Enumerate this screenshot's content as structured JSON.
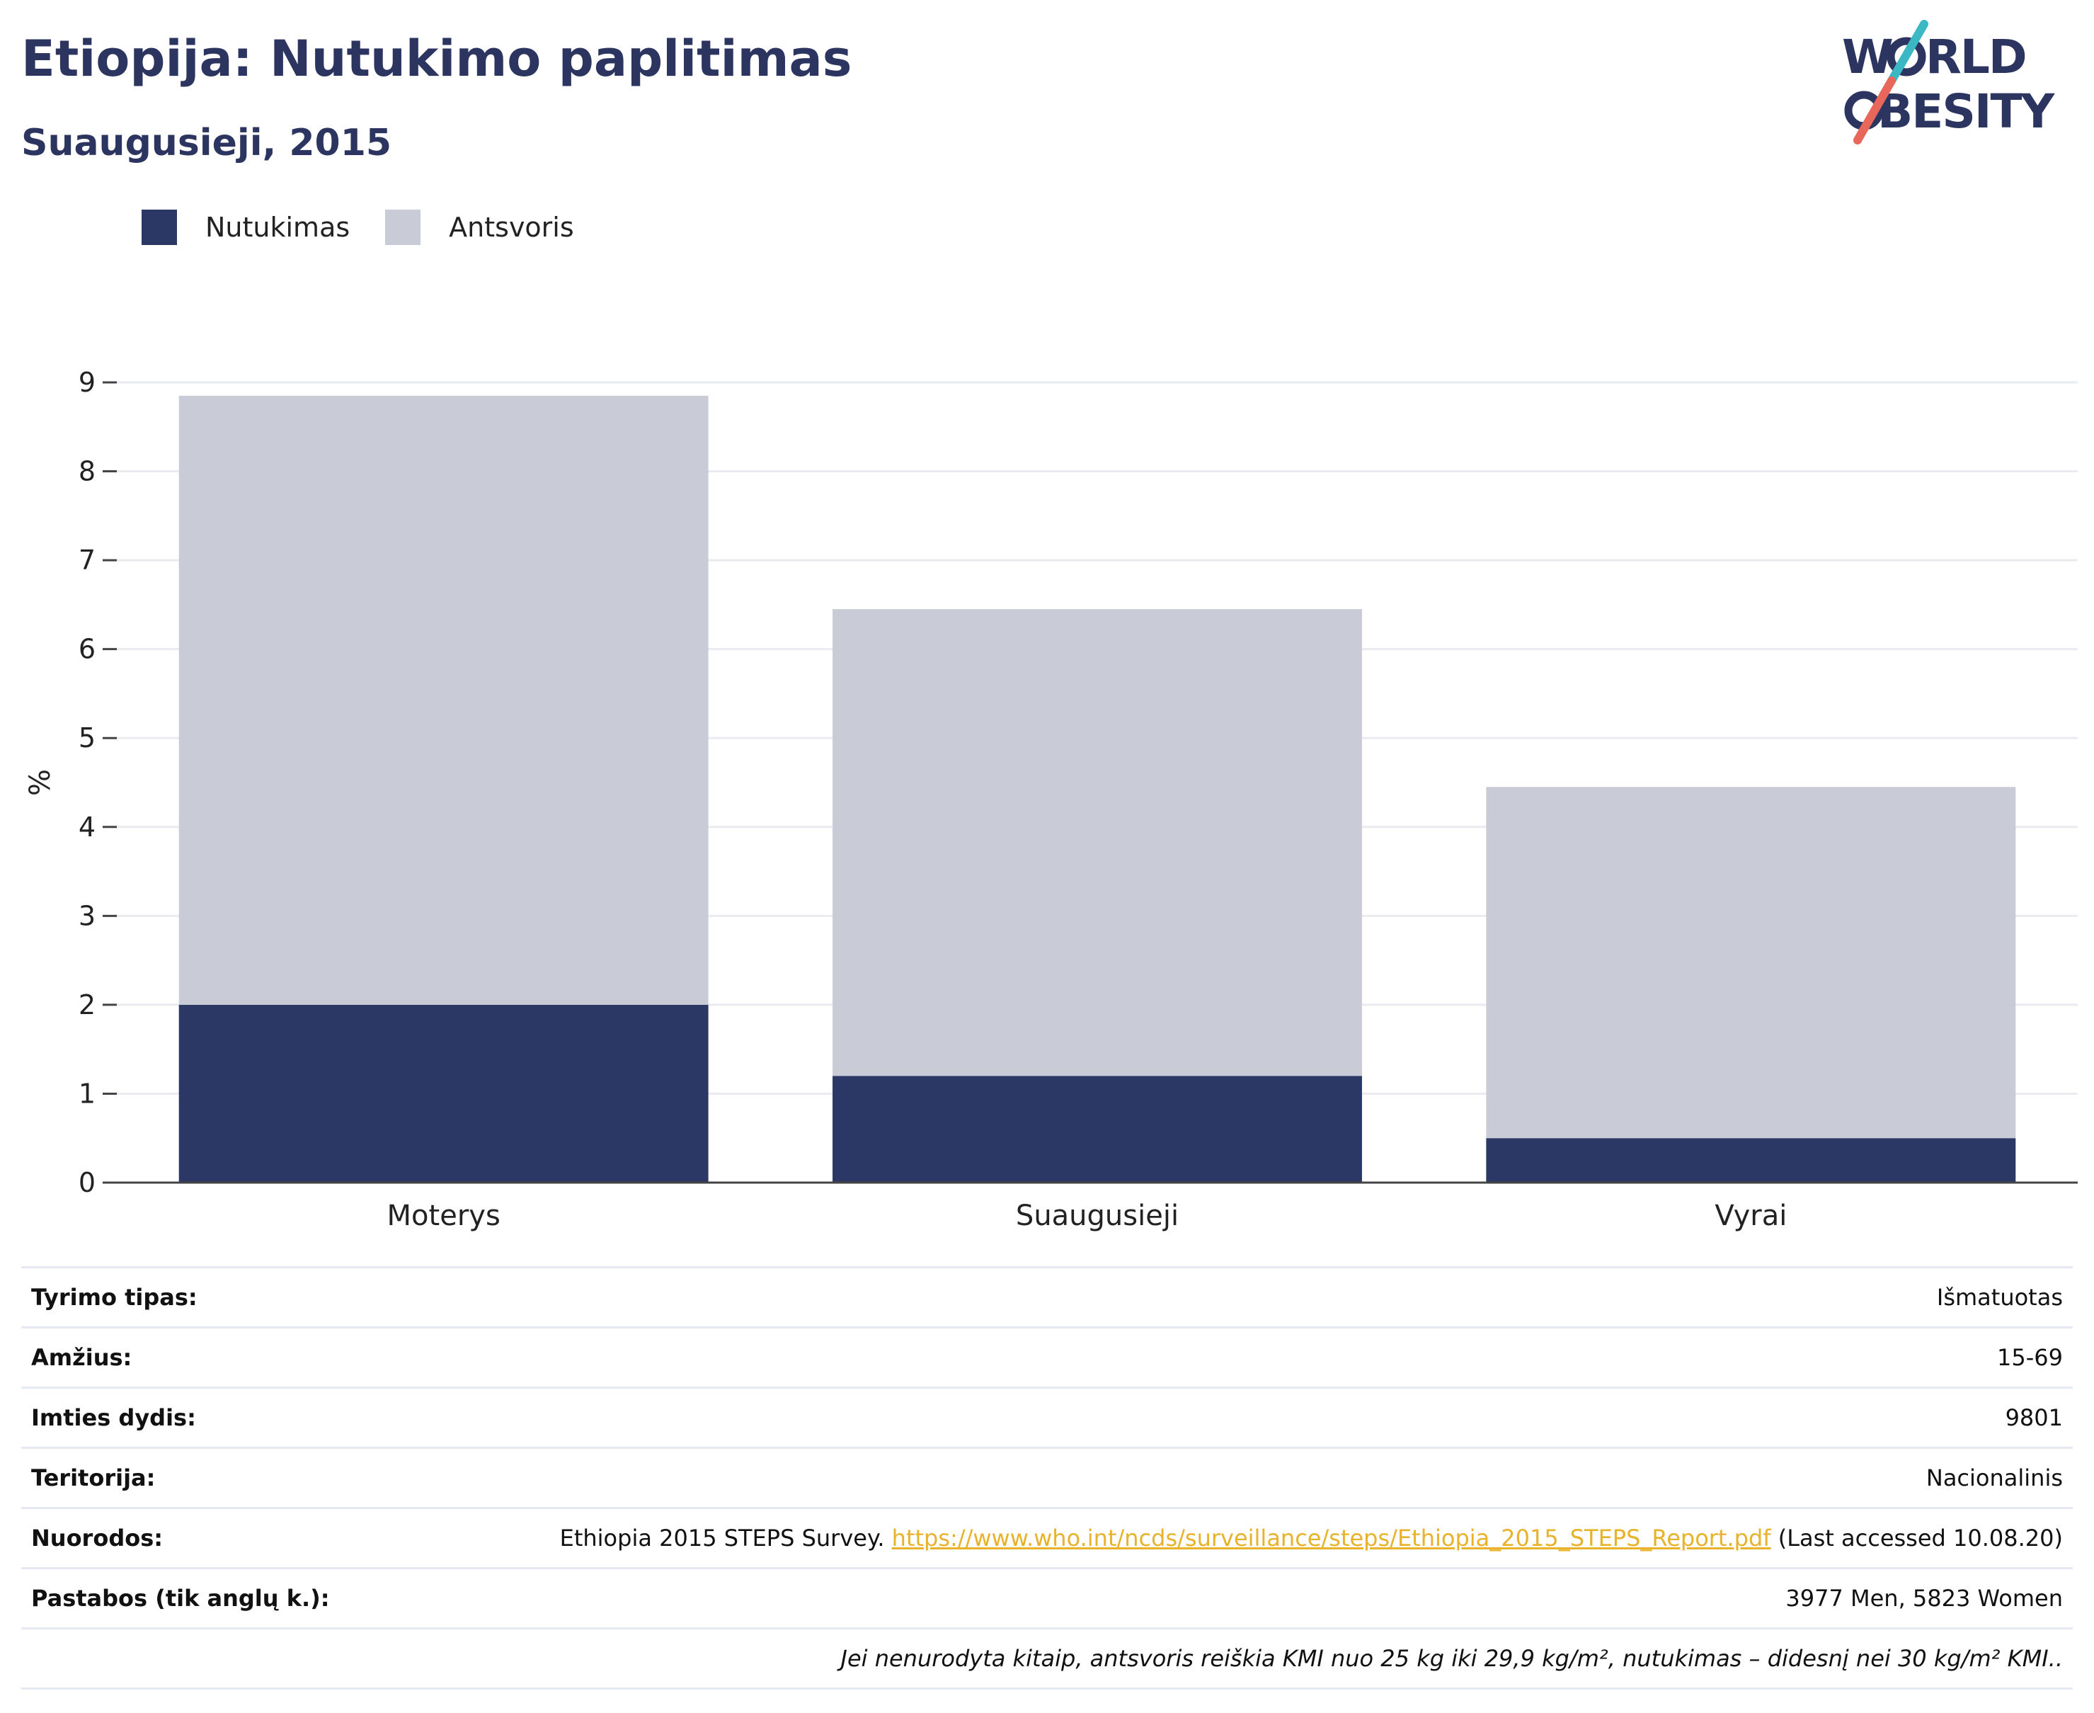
{
  "title": "Etiopija: Nutukimo paplitimas",
  "subtitle": "Suaugusieji, 2015",
  "logo": {
    "line1": "WORLD",
    "line2": "OBESITY"
  },
  "colors": {
    "obesity": "#2b3764",
    "overweight": "#c9cbd7",
    "title": "#2b3560",
    "link": "#e8b22a",
    "accent_teal": "#3bb8c3",
    "accent_red": "#e8665a"
  },
  "chart_data": {
    "type": "bar",
    "stacked": true,
    "categories": [
      "Moterys",
      "Suaugusieji",
      "Vyrai"
    ],
    "series": [
      {
        "name": "Nutukimas",
        "values": [
          2.0,
          1.2,
          0.5
        ]
      },
      {
        "name": "Antsvoris",
        "values": [
          6.85,
          5.25,
          3.95
        ]
      }
    ],
    "ylabel": "%",
    "xlabel": "",
    "ylim": [
      0,
      9
    ],
    "yticks": [
      "0",
      "1",
      "2",
      "3",
      "4",
      "5",
      "6",
      "7",
      "8",
      "9"
    ],
    "grid": true,
    "legend": "top-left"
  },
  "info": {
    "rows": [
      {
        "label": "Tyrimo tipas:",
        "value": "Išmatuotas"
      },
      {
        "label": "Amžius:",
        "value": "15-69"
      },
      {
        "label": "Imties dydis:",
        "value": "9801"
      },
      {
        "label": "Teritorija:",
        "value": "Nacionalinis"
      }
    ],
    "references": {
      "label": "Nuorodos:",
      "prefix": "Ethiopia 2015 STEPS Survey.",
      "url": "https://www.who.int/ncds/surveillance/steps/Ethiopia_2015_STEPS_Report.pdf",
      "suffix": "(Last accessed 10.08.20)"
    },
    "notes": {
      "label": "Pastabos (tik anglų k.):",
      "value": "3977 Men, 5823 Women"
    },
    "footnote": "Jei nenurodyta kitaip, antsvoris reiškia KMI nuo 25 kg iki 29,9 kg/m², nutukimas – didesnį nei 30 kg/m² KMI.."
  }
}
